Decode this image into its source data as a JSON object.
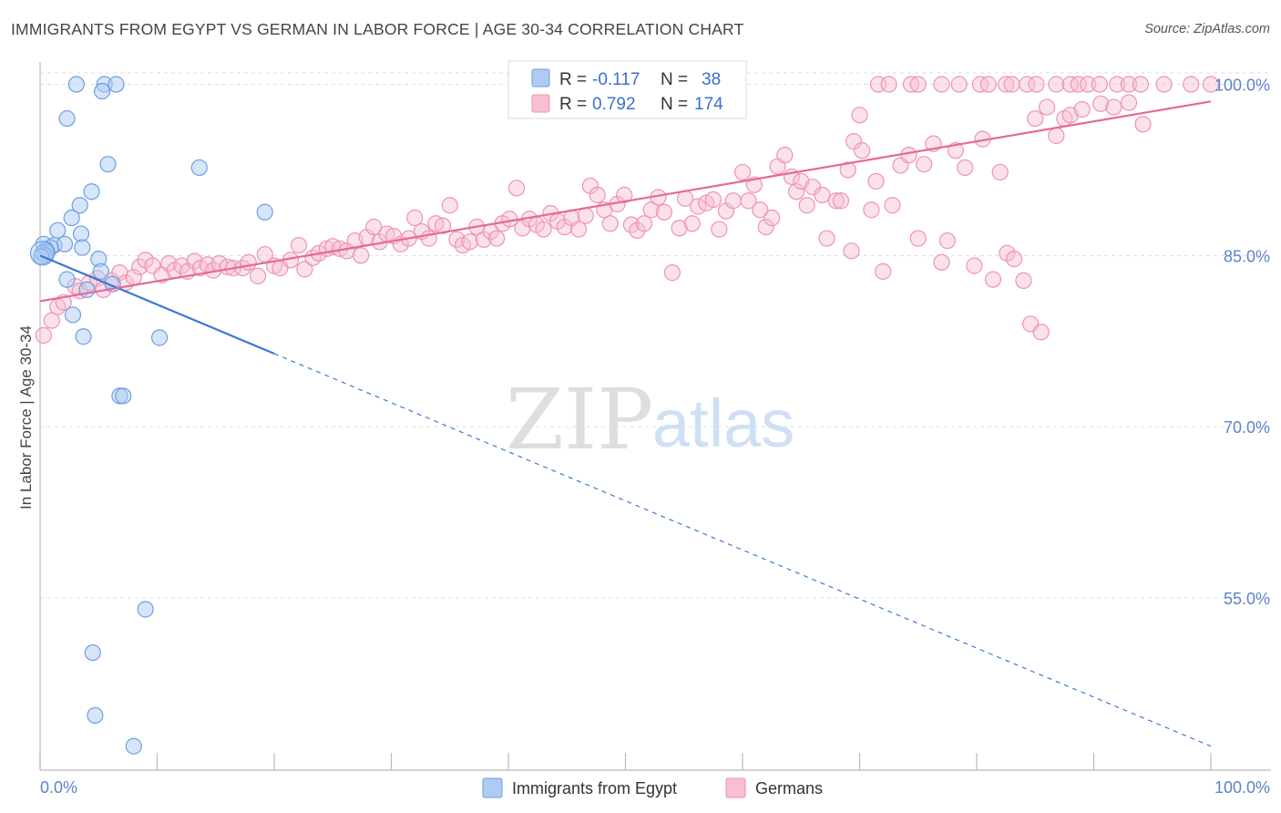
{
  "header": {
    "title": "IMMIGRANTS FROM EGYPT VS GERMAN IN LABOR FORCE | AGE 30-34 CORRELATION CHART",
    "source": "Source: ZipAtlas.com"
  },
  "watermark": {
    "zip": "ZIP",
    "atlas": "atlas"
  },
  "colors": {
    "egypt_fill": "#aecbf3",
    "egypt_stroke": "#6e9fe0",
    "egypt_line": "#3b78d4",
    "german_fill": "#f7bfd0",
    "german_stroke": "#ee93b1",
    "german_line": "#e4699a",
    "grid": "#dddddd",
    "tick_text": "#5b84c9"
  },
  "legend": {
    "rows": [
      {
        "r_label": "R = ",
        "r_value": "-0.117",
        "n_label": "N = ",
        "n_value": "38"
      },
      {
        "r_label": "R = ",
        "r_value": "0.792",
        "n_label": "N = ",
        "n_value": "174"
      }
    ]
  },
  "chart_data": {
    "type": "scatter",
    "title": "IMMIGRANTS FROM EGYPT VS GERMAN IN LABOR FORCE | AGE 30-34 CORRELATION CHART",
    "xlabel": "",
    "ylabel": "In Labor Force | Age 30-34",
    "xlim": [
      0,
      100
    ],
    "ylim": [
      41.5,
      101
    ],
    "x_tick_labels": [
      "0.0%",
      "100.0%"
    ],
    "y_ticks": [
      {
        "value": 55,
        "label": "55.0%"
      },
      {
        "value": 70,
        "label": "70.0%"
      },
      {
        "value": 85,
        "label": "85.0%"
      },
      {
        "value": 100,
        "label": "100.0%"
      }
    ],
    "grid": true,
    "legend_position": "top-center",
    "bottom_legend": [
      "Immigrants from Egypt",
      "Germans"
    ],
    "series": [
      {
        "name": "Immigrants from Egypt",
        "trend": {
          "x0": 0,
          "y0": 85.0,
          "x1": 20,
          "y1": 76.4,
          "dash_to_x": 100,
          "dash_to_y": 42.0
        },
        "points": [
          [
            3.1,
            100
          ],
          [
            5.5,
            100
          ],
          [
            6.5,
            100
          ],
          [
            5.3,
            99.4
          ],
          [
            2.3,
            97
          ],
          [
            5.8,
            93
          ],
          [
            13.6,
            92.7
          ],
          [
            4.4,
            90.6
          ],
          [
            3.4,
            89.4
          ],
          [
            19.2,
            88.8
          ],
          [
            2.7,
            88.3
          ],
          [
            1.5,
            87.2
          ],
          [
            3.5,
            86.9
          ],
          [
            0.3,
            86.0
          ],
          [
            1.2,
            85.9
          ],
          [
            2.1,
            86.0
          ],
          [
            0.9,
            85.7
          ],
          [
            0.5,
            85.5
          ],
          [
            0.6,
            85.3
          ],
          [
            0.2,
            85.2
          ],
          [
            0.4,
            85.0
          ],
          [
            0.1,
            84.9
          ],
          [
            3.6,
            85.7
          ],
          [
            5.0,
            84.7
          ],
          [
            5.2,
            83.6
          ],
          [
            2.3,
            82.9
          ],
          [
            4.0,
            82.0
          ],
          [
            6.2,
            82.5
          ],
          [
            2.8,
            79.8
          ],
          [
            3.7,
            77.9
          ],
          [
            10.2,
            77.8
          ],
          [
            6.8,
            72.7
          ],
          [
            7.1,
            72.7
          ],
          [
            9.0,
            54.0
          ],
          [
            4.5,
            50.2
          ],
          [
            4.7,
            44.7
          ],
          [
            8.0,
            42.0
          ]
        ]
      },
      {
        "name": "Germans",
        "trend": {
          "x0": 0,
          "y0": 81.0,
          "x1": 100,
          "y1": 98.5
        },
        "points": [
          [
            0.3,
            78
          ],
          [
            1.0,
            79.3
          ],
          [
            1.5,
            80.5
          ],
          [
            2.0,
            80.9
          ],
          [
            3.0,
            82.3
          ],
          [
            3.4,
            81.9
          ],
          [
            4.2,
            82.6
          ],
          [
            4.9,
            83.0
          ],
          [
            5.4,
            82.0
          ],
          [
            6.1,
            82.8
          ],
          [
            6.8,
            83.5
          ],
          [
            7.3,
            82.6
          ],
          [
            8.0,
            83.1
          ],
          [
            8.5,
            84.0
          ],
          [
            9.0,
            84.6
          ],
          [
            9.6,
            84.1
          ],
          [
            10.4,
            83.3
          ],
          [
            11.0,
            84.3
          ],
          [
            11.5,
            83.7
          ],
          [
            12.1,
            84.1
          ],
          [
            12.6,
            83.6
          ],
          [
            13.2,
            84.5
          ],
          [
            13.7,
            83.9
          ],
          [
            14.3,
            84.2
          ],
          [
            14.8,
            83.7
          ],
          [
            15.3,
            84.3
          ],
          [
            16.0,
            84.0
          ],
          [
            16.5,
            83.9
          ],
          [
            17.3,
            83.9
          ],
          [
            17.8,
            84.4
          ],
          [
            18.6,
            83.2
          ],
          [
            19.2,
            85.1
          ],
          [
            20.0,
            84.1
          ],
          [
            20.5,
            83.9
          ],
          [
            21.4,
            84.6
          ],
          [
            22.1,
            85.9
          ],
          [
            22.6,
            83.8
          ],
          [
            23.3,
            84.8
          ],
          [
            23.8,
            85.2
          ],
          [
            24.5,
            85.6
          ],
          [
            25.0,
            85.8
          ],
          [
            25.6,
            85.6
          ],
          [
            26.2,
            85.4
          ],
          [
            26.9,
            86.3
          ],
          [
            27.4,
            85.0
          ],
          [
            27.9,
            86.6
          ],
          [
            28.5,
            87.5
          ],
          [
            29.0,
            86.2
          ],
          [
            29.6,
            86.9
          ],
          [
            30.2,
            86.7
          ],
          [
            30.8,
            86.0
          ],
          [
            31.5,
            86.5
          ],
          [
            32.0,
            88.3
          ],
          [
            32.6,
            87.1
          ],
          [
            33.2,
            86.5
          ],
          [
            33.8,
            87.8
          ],
          [
            34.4,
            87.6
          ],
          [
            35.0,
            89.4
          ],
          [
            35.6,
            86.4
          ],
          [
            36.1,
            85.9
          ],
          [
            36.7,
            86.2
          ],
          [
            37.3,
            87.5
          ],
          [
            37.9,
            86.4
          ],
          [
            38.5,
            87.1
          ],
          [
            39.0,
            86.5
          ],
          [
            39.5,
            87.8
          ],
          [
            40.1,
            88.2
          ],
          [
            40.7,
            90.9
          ],
          [
            41.2,
            87.4
          ],
          [
            41.8,
            88.2
          ],
          [
            42.4,
            87.7
          ],
          [
            43.0,
            87.3
          ],
          [
            43.6,
            88.7
          ],
          [
            44.2,
            88.0
          ],
          [
            44.8,
            87.5
          ],
          [
            45.4,
            88.3
          ],
          [
            46.0,
            87.3
          ],
          [
            46.6,
            88.5
          ],
          [
            47.0,
            91.1
          ],
          [
            47.6,
            90.3
          ],
          [
            48.2,
            89.0
          ],
          [
            48.7,
            87.8
          ],
          [
            49.3,
            89.5
          ],
          [
            49.9,
            90.3
          ],
          [
            50.5,
            87.7
          ],
          [
            51.0,
            87.2
          ],
          [
            51.6,
            87.8
          ],
          [
            52.2,
            89.0
          ],
          [
            52.8,
            90.1
          ],
          [
            53.3,
            88.8
          ],
          [
            54.0,
            83.5
          ],
          [
            54.6,
            87.4
          ],
          [
            55.1,
            90.0
          ],
          [
            55.7,
            87.8
          ],
          [
            56.2,
            89.3
          ],
          [
            56.9,
            89.6
          ],
          [
            57.5,
            89.9
          ],
          [
            58.0,
            87.3
          ],
          [
            58.6,
            88.9
          ],
          [
            59.2,
            89.8
          ],
          [
            60.0,
            92.3
          ],
          [
            60.5,
            89.8
          ],
          [
            61.0,
            91.2
          ],
          [
            61.5,
            89.0
          ],
          [
            62.0,
            87.5
          ],
          [
            62.5,
            88.3
          ],
          [
            63.0,
            92.8
          ],
          [
            63.6,
            93.8
          ],
          [
            64.2,
            91.9
          ],
          [
            64.6,
            90.6
          ],
          [
            65.0,
            91.5
          ],
          [
            65.5,
            89.4
          ],
          [
            66.0,
            91.0
          ],
          [
            66.8,
            90.3
          ],
          [
            67.2,
            86.5
          ],
          [
            68.0,
            89.8
          ],
          [
            68.4,
            89.8
          ],
          [
            69.0,
            92.5
          ],
          [
            69.5,
            95.0
          ],
          [
            70.2,
            94.2
          ],
          [
            71.0,
            89.0
          ],
          [
            71.4,
            91.5
          ],
          [
            72.0,
            83.6
          ],
          [
            72.8,
            89.4
          ],
          [
            73.5,
            92.9
          ],
          [
            74.2,
            93.8
          ],
          [
            75.0,
            86.5
          ],
          [
            75.5,
            93.0
          ],
          [
            76.3,
            94.8
          ],
          [
            77.0,
            84.4
          ],
          [
            77.5,
            86.3
          ],
          [
            78.2,
            94.2
          ],
          [
            79.0,
            92.7
          ],
          [
            79.8,
            84.1
          ],
          [
            80.5,
            95.2
          ],
          [
            81.4,
            82.9
          ],
          [
            82.0,
            92.3
          ],
          [
            82.6,
            85.2
          ],
          [
            83.2,
            84.7
          ],
          [
            84.0,
            82.8
          ],
          [
            84.6,
            79.0
          ],
          [
            85.5,
            78.3
          ],
          [
            85.0,
            97.0
          ],
          [
            86.0,
            98.0
          ],
          [
            86.8,
            95.5
          ],
          [
            87.5,
            97.0
          ],
          [
            88.0,
            97.3
          ],
          [
            89.0,
            97.8
          ],
          [
            90.6,
            98.3
          ],
          [
            91.7,
            98.0
          ],
          [
            93.0,
            98.4
          ],
          [
            94.2,
            96.5
          ],
          [
            74.4,
            100
          ],
          [
            75.0,
            100
          ],
          [
            77.0,
            100
          ],
          [
            78.5,
            100
          ],
          [
            80.3,
            100
          ],
          [
            81.0,
            100
          ],
          [
            82.5,
            100
          ],
          [
            83.0,
            100
          ],
          [
            84.3,
            100
          ],
          [
            85.1,
            100
          ],
          [
            86.8,
            100
          ],
          [
            88.0,
            100
          ],
          [
            88.7,
            100
          ],
          [
            89.5,
            100
          ],
          [
            90.5,
            100
          ],
          [
            92.0,
            100
          ],
          [
            93.0,
            100
          ],
          [
            94.0,
            100
          ],
          [
            96.0,
            100
          ],
          [
            98.3,
            100
          ],
          [
            100.0,
            100
          ],
          [
            70.0,
            97.3
          ],
          [
            71.6,
            100
          ],
          [
            72.5,
            100
          ],
          [
            69.3,
            85.4
          ]
        ]
      }
    ]
  }
}
